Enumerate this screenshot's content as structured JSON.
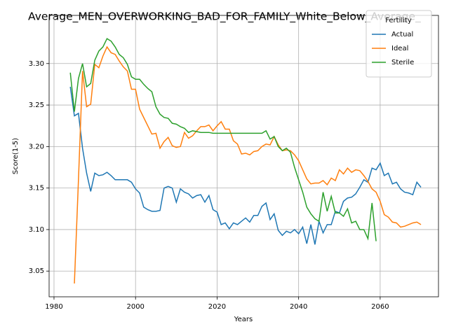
{
  "chart_data": {
    "type": "line",
    "title": "Average_MEN_OVERWORKING_BAD_FOR_FAMILY_White_Below_Average_",
    "xlabel": "Years",
    "ylabel": "Score(1-5)",
    "legend_title": "Fertility",
    "legend": "upper right",
    "grid": true,
    "x": [
      1984,
      1985,
      1986,
      1987,
      1988,
      1989,
      1990,
      1991,
      1992,
      1993,
      1994,
      1995,
      1996,
      1997,
      1998,
      1999,
      2000,
      2001,
      2002,
      2003,
      2004,
      2005,
      2006,
      2007,
      2008,
      2009,
      2010,
      2011,
      2012,
      2013,
      2014,
      2015,
      2016,
      2017,
      2018,
      2019,
      2020,
      2021,
      2022,
      2023,
      2024,
      2025,
      2026,
      2027,
      2028,
      2029,
      2030,
      2031,
      2032,
      2033,
      2034,
      2035,
      2036,
      2037,
      2038,
      2039,
      2040,
      2041,
      2042,
      2043,
      2044,
      2045,
      2046,
      2047,
      2048,
      2049,
      2050,
      2051,
      2052,
      2053,
      2054,
      2055,
      2056,
      2057,
      2058,
      2059,
      2060,
      2061,
      2062,
      2063,
      2064,
      2065,
      2066,
      2067,
      2068,
      2069,
      2070
    ],
    "xlim": [
      1978.8,
      2074.3
    ],
    "xticks": [
      1980,
      2000,
      2020,
      2040,
      2060
    ],
    "ylim": [
      3.019,
      3.358
    ],
    "yticks": [
      3.05,
      {
        "value": 3.1,
        "label": "3.10"
      },
      3.15,
      {
        "value": 3.2,
        "label": "3.20"
      },
      3.25,
      {
        "value": 3.3,
        "label": "3.30"
      }
    ],
    "series": [
      {
        "name": "Actual",
        "color": "#1f77b4",
        "values": [
          3.272,
          3.237,
          3.24,
          3.198,
          3.168,
          3.146,
          3.168,
          3.165,
          3.166,
          3.169,
          3.165,
          3.16,
          3.16,
          3.16,
          3.16,
          3.157,
          3.149,
          3.144,
          3.127,
          3.124,
          3.122,
          3.122,
          3.123,
          3.15,
          3.152,
          3.15,
          3.133,
          3.149,
          3.145,
          3.143,
          3.138,
          3.141,
          3.142,
          3.133,
          3.141,
          3.124,
          3.121,
          3.106,
          3.108,
          3.101,
          3.108,
          3.106,
          3.11,
          3.114,
          3.109,
          3.117,
          3.117,
          3.128,
          3.132,
          3.112,
          3.119,
          3.099,
          3.093,
          3.098,
          3.096,
          3.1,
          3.095,
          3.103,
          3.083,
          3.106,
          3.082,
          3.11,
          3.096,
          3.106,
          3.106,
          3.122,
          3.12,
          3.134,
          3.138,
          3.139,
          3.143,
          3.151,
          3.16,
          3.157,
          3.174,
          3.172,
          3.18,
          3.165,
          3.168,
          3.155,
          3.157,
          3.149,
          3.145,
          3.144,
          3.142,
          3.157,
          3.151
        ]
      },
      {
        "name": "Ideal",
        "color": "#ff7f0e",
        "values": [
          null,
          3.035,
          3.16,
          3.291,
          3.248,
          3.251,
          3.299,
          3.295,
          3.309,
          3.32,
          3.313,
          3.311,
          3.303,
          3.296,
          3.291,
          3.269,
          3.269,
          3.245,
          3.235,
          3.225,
          3.215,
          3.216,
          3.198,
          3.206,
          3.211,
          3.201,
          3.199,
          3.2,
          3.217,
          3.21,
          3.213,
          3.219,
          3.224,
          3.224,
          3.226,
          3.219,
          3.225,
          3.23,
          3.221,
          3.221,
          3.207,
          3.203,
          3.191,
          3.192,
          3.19,
          3.194,
          3.195,
          3.2,
          3.203,
          3.202,
          3.212,
          3.202,
          3.195,
          3.196,
          3.195,
          3.19,
          3.183,
          3.172,
          3.161,
          3.155,
          3.156,
          3.156,
          3.159,
          3.154,
          3.162,
          3.159,
          3.172,
          3.167,
          3.174,
          3.169,
          3.172,
          3.171,
          3.165,
          3.158,
          3.149,
          3.145,
          3.134,
          3.118,
          3.115,
          3.109,
          3.108,
          3.103,
          3.104,
          3.106,
          3.108,
          3.109,
          3.106
        ]
      },
      {
        "name": "Sterile",
        "color": "#2ca02c",
        "values": [
          3.289,
          3.242,
          3.282,
          3.3,
          3.272,
          3.276,
          3.304,
          3.315,
          3.32,
          3.33,
          3.327,
          3.32,
          3.311,
          3.307,
          3.299,
          3.284,
          3.281,
          3.281,
          3.275,
          3.27,
          3.266,
          3.248,
          3.239,
          3.235,
          3.234,
          3.228,
          3.227,
          3.224,
          3.222,
          3.217,
          3.219,
          3.218,
          3.217,
          3.217,
          3.217,
          3.216,
          3.216,
          3.216,
          3.216,
          3.216,
          3.216,
          3.216,
          3.216,
          3.216,
          3.216,
          3.216,
          3.216,
          3.216,
          3.219,
          3.209,
          3.212,
          3.2,
          3.195,
          3.198,
          3.193,
          3.175,
          3.16,
          3.145,
          3.127,
          3.119,
          3.113,
          3.11,
          3.145,
          3.122,
          3.14,
          3.12,
          3.12,
          3.116,
          3.125,
          3.108,
          3.11,
          3.1,
          3.1,
          3.089,
          3.132,
          3.086,
          null,
          null,
          null,
          null,
          null,
          null,
          null,
          null,
          null,
          null,
          null
        ]
      }
    ]
  }
}
